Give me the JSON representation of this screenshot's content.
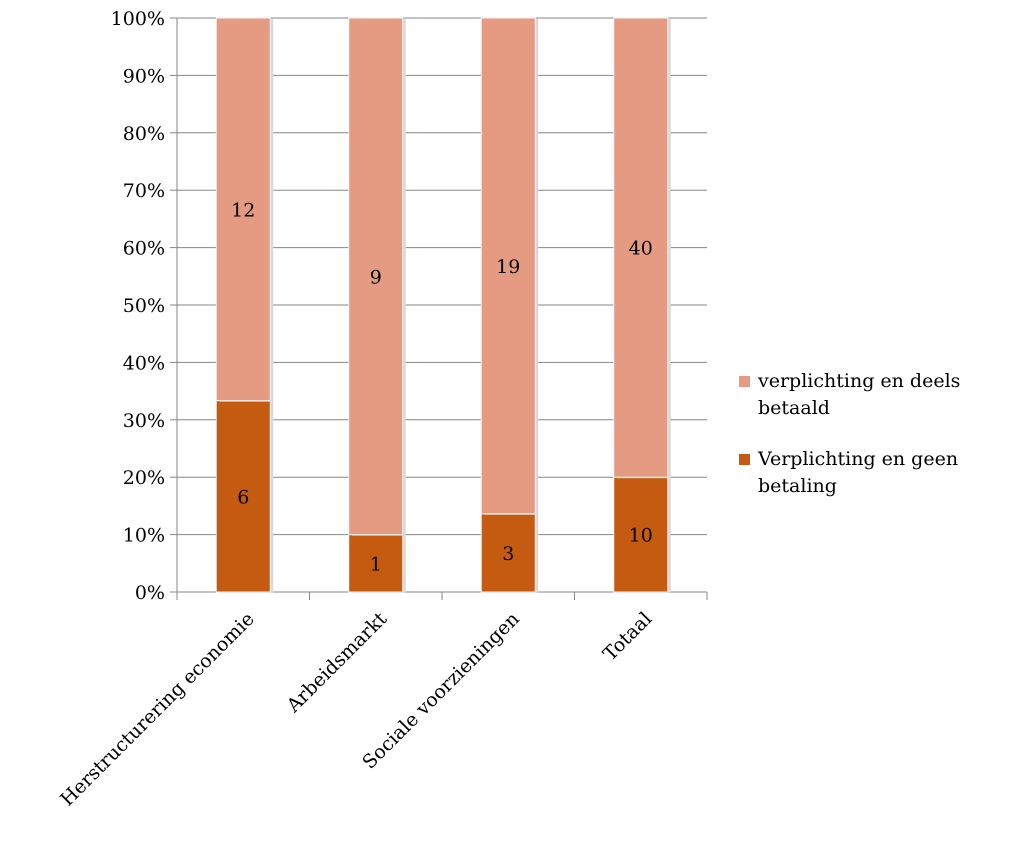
{
  "chart_data": {
    "type": "bar",
    "stacked": true,
    "percent_stacked": true,
    "categories": [
      "Herstructurering economie",
      "Arbeidsmarkt",
      "Sociale voorzieningen",
      "Totaal"
    ],
    "series": [
      {
        "name": "Verplichting en geen betaling",
        "values": [
          6,
          1,
          3,
          10
        ],
        "color": "#c55a11"
      },
      {
        "name": "verplichting en deels betaald",
        "values": [
          12,
          9,
          19,
          40
        ],
        "color": "#e59b82"
      }
    ],
    "yticks": [
      "0%",
      "10%",
      "20%",
      "30%",
      "40%",
      "50%",
      "60%",
      "70%",
      "80%",
      "90%",
      "100%"
    ],
    "ylim": [
      0,
      100
    ],
    "grid": true,
    "legend_position": "right",
    "legend_order": [
      "verplichting en deels betaald",
      "Verplichting en geen betaling"
    ],
    "legend_lines": {
      "verplichting en deels betaald": [
        "verplichting en deels",
        "betaald"
      ],
      "Verplichting en geen betaling": [
        "Verplichting en geen",
        "betaling"
      ]
    }
  }
}
